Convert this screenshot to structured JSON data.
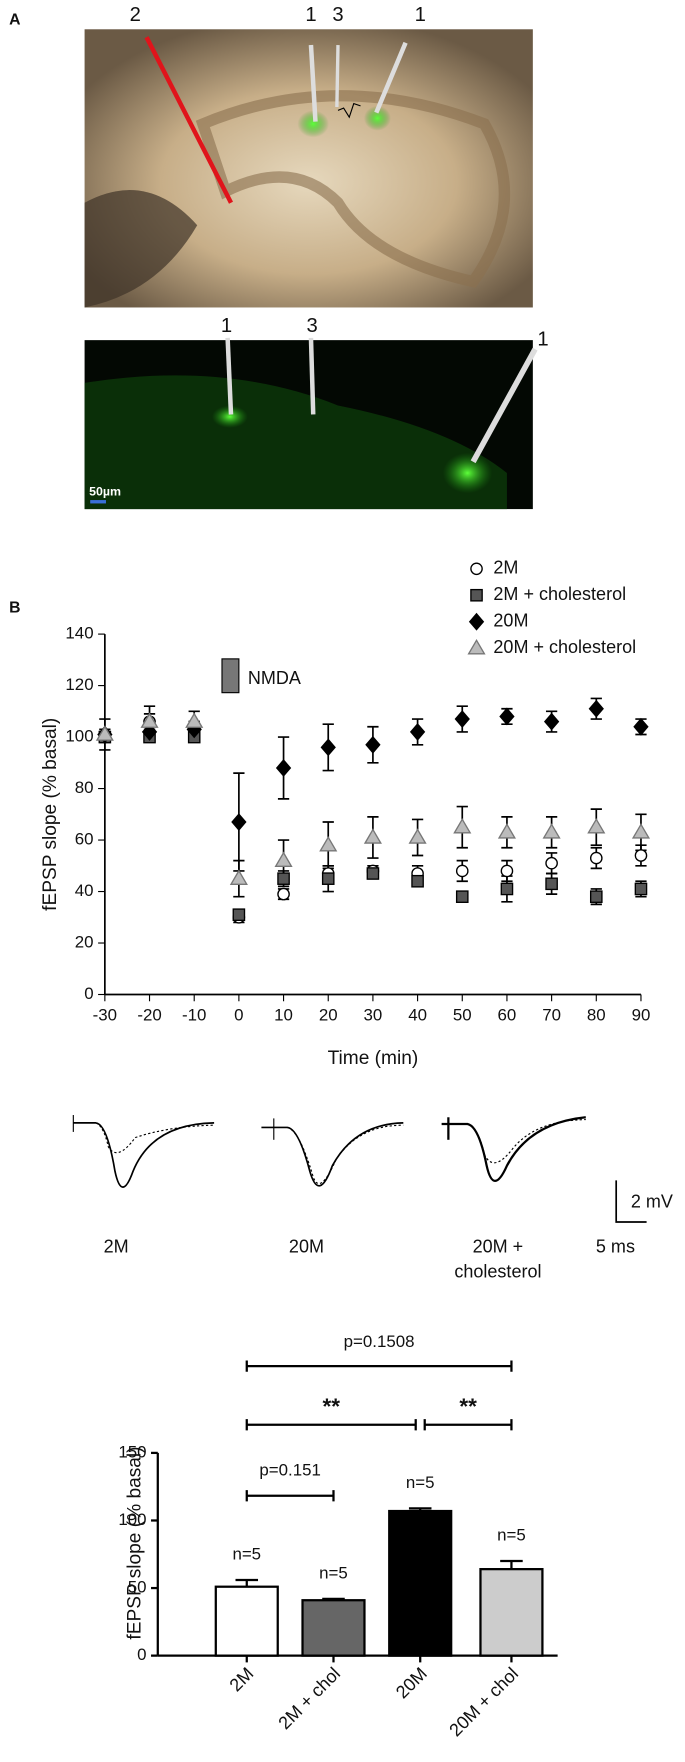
{
  "panel_labels": [
    "A",
    "B"
  ],
  "panel_a": {
    "top_electrodes": [
      "2",
      "1",
      "3",
      "1"
    ],
    "bottom_electrodes": [
      "1",
      "3",
      "1"
    ],
    "scale_bar": "50µm"
  },
  "traces": {
    "labels": [
      "2M",
      "20M",
      "20M +",
      "cholesterol"
    ],
    "scale_y": "2 mV",
    "scale_x": "5 ms"
  },
  "chart_data": [
    {
      "type": "line",
      "xlabel": "Time (min)",
      "ylabel": "fEPSP slope (% basal)",
      "x": [
        -30,
        -20,
        -10,
        0,
        10,
        20,
        30,
        40,
        50,
        60,
        70,
        80,
        90
      ],
      "xlim": [
        -30,
        90
      ],
      "xticks": [
        -30,
        -20,
        -10,
        0,
        10,
        20,
        30,
        40,
        50,
        60,
        70,
        80,
        90
      ],
      "ylim": [
        0,
        140
      ],
      "yticks": [
        0,
        20,
        40,
        60,
        80,
        100,
        120,
        140
      ],
      "annotation": "NMDA",
      "legend": "top-right",
      "series": [
        {
          "name": "2M",
          "marker": "circle",
          "color": "#ffffff",
          "values": [
            100,
            106,
            103,
            30,
            39,
            47,
            48,
            47,
            48,
            48,
            51,
            53,
            54
          ],
          "errors": [
            2,
            3,
            3,
            2,
            2,
            3,
            2,
            3,
            4,
            4,
            4,
            4,
            4
          ]
        },
        {
          "name": "2M + cholesterol",
          "marker": "square",
          "color": "#555555",
          "values": [
            100,
            100,
            100,
            31,
            45,
            45,
            47,
            44,
            38,
            41,
            43,
            38,
            41
          ],
          "errors": [
            1,
            1,
            1,
            2,
            3,
            5,
            2,
            1,
            2,
            5,
            4,
            3,
            3
          ]
        },
        {
          "name": "20M",
          "marker": "diamond",
          "color": "#000000",
          "values": [
            101,
            102,
            103,
            67,
            88,
            96,
            97,
            102,
            107,
            108,
            106,
            111,
            104
          ],
          "errors": [
            6,
            3,
            3,
            19,
            12,
            9,
            7,
            5,
            5,
            3,
            4,
            4,
            3
          ]
        },
        {
          "name": "20M + cholesterol",
          "marker": "triangle",
          "color": "#bbbbbb",
          "values": [
            101,
            106,
            106,
            45,
            52,
            58,
            61,
            61,
            65,
            63,
            63,
            65,
            63
          ],
          "errors": [
            2,
            6,
            4,
            7,
            8,
            9,
            8,
            7,
            8,
            6,
            6,
            7,
            7
          ]
        }
      ]
    },
    {
      "type": "bar",
      "ylabel": "fEPSP slope (% basal)",
      "categories": [
        "2M",
        "2M + chol",
        "20M",
        "20M + chol"
      ],
      "values": [
        51,
        41,
        107,
        64
      ],
      "errors": [
        5,
        1,
        2,
        6
      ],
      "colors": [
        "#ffffff",
        "#666666",
        "#000000",
        "#cccccc"
      ],
      "n_labels": [
        "n=5",
        "n=5",
        "n=5",
        "n=5"
      ],
      "ylim": [
        0,
        150
      ],
      "yticks": [
        0,
        50,
        100,
        150
      ],
      "annotations": [
        "p=0.1508",
        "**",
        "**",
        "p=0.151"
      ]
    }
  ]
}
